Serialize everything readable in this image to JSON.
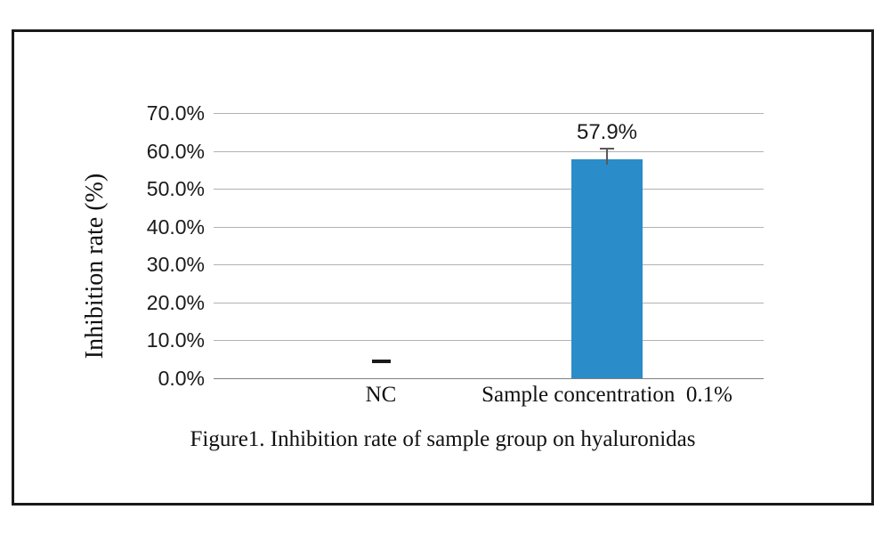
{
  "figure": {
    "background_color": "#ffffff",
    "frame_border_color": "#1a1a1a"
  },
  "chart_data": {
    "type": "bar",
    "title": "",
    "caption": "Figure1. Inhibition rate of sample group on hyaluronidas",
    "xlabel": "",
    "ylabel": "Inhibition rate (%)",
    "ylim": [
      0,
      70
    ],
    "grid": true,
    "legend_position": "none",
    "gridline_color": "#b2b2b2",
    "axis_line_color": "#7f7f7f",
    "error_bar_color": "#595959",
    "bar_color": "#2A8CC8",
    "yticks": [
      {
        "value": 0,
        "label": "0.0%"
      },
      {
        "value": 10,
        "label": "10.0%"
      },
      {
        "value": 20,
        "label": "20.0%"
      },
      {
        "value": 30,
        "label": "30.0%"
      },
      {
        "value": 40,
        "label": "40.0%"
      },
      {
        "value": 50,
        "label": "50.0%"
      },
      {
        "value": 60,
        "label": "60.0%"
      },
      {
        "value": 70,
        "label": "70.0%"
      }
    ],
    "categories": [
      "NC",
      "Sample concentration  0.1%"
    ],
    "bars": [
      {
        "category": "NC",
        "value": 0.0,
        "value_label": "—",
        "label_type": "dash",
        "error": null
      },
      {
        "category": "Sample concentration  0.1%",
        "value": 57.9,
        "value_label": "57.9%",
        "label_type": "text",
        "error": 3.0
      }
    ]
  }
}
